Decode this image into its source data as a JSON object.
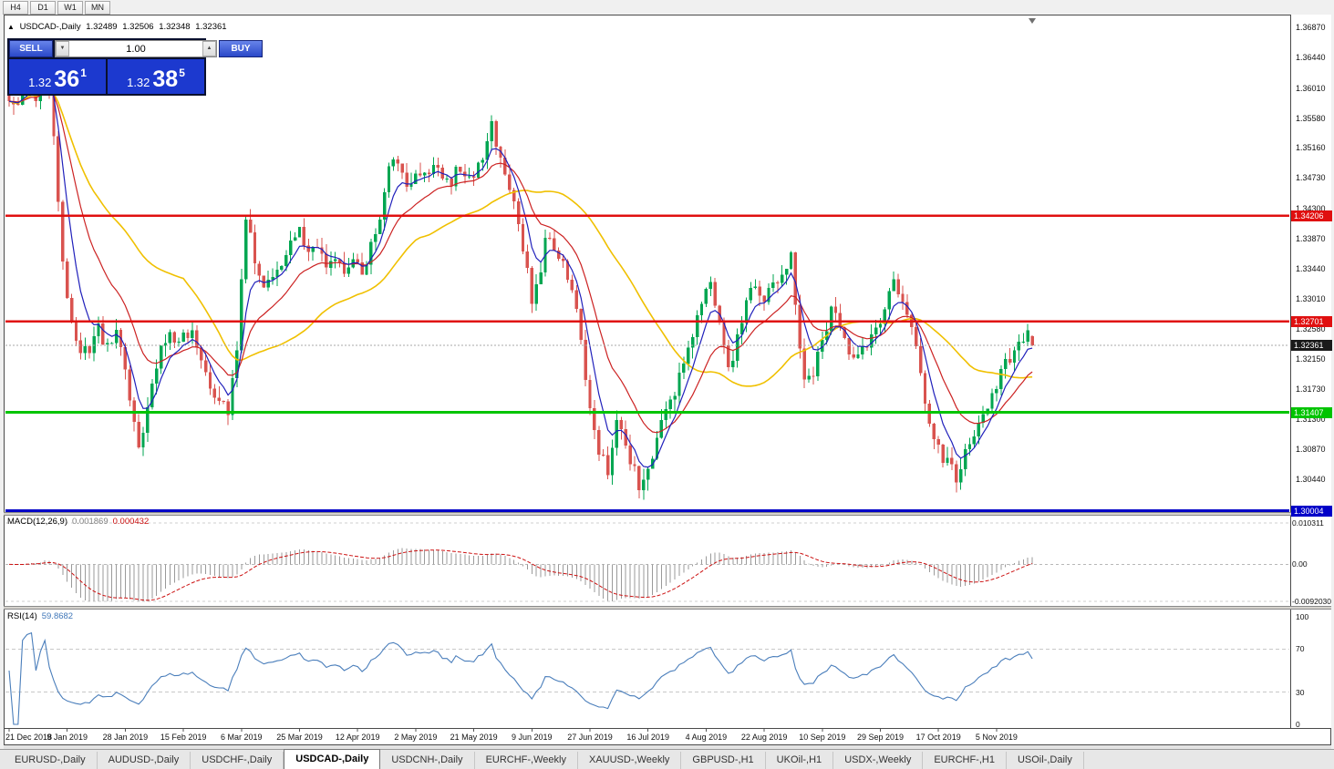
{
  "colors": {
    "candle_up": "#00a651",
    "candle_down": "#d9534f",
    "ma_fast": "#2020bb",
    "ma_mid": "#cc2222",
    "ma_slow": "#f0c000",
    "macd_hist": "#9a9a9a",
    "macd_signal": "#cc1111",
    "rsi_line": "#4a7ebb",
    "current_price_tag": "#1a1a1a"
  },
  "timeframe_bar": {
    "buttons": [
      "H4",
      "D1",
      "W1",
      "MN"
    ]
  },
  "symbol_info": {
    "symbol": "USDCAD-,Daily",
    "open": "1.32489",
    "high": "1.32506",
    "low": "1.32348",
    "close": "1.32361"
  },
  "trade_panel": {
    "sell_label": "SELL",
    "buy_label": "BUY",
    "volume": "1.00",
    "sell_price_main": "1.32",
    "sell_price_pips": "36",
    "sell_price_sup": "1",
    "buy_price_main": "1.32",
    "buy_price_pips": "38",
    "buy_price_sup": "5"
  },
  "chart": {
    "price_axis": [
      "1.36870",
      "1.36440",
      "1.36010",
      "1.35580",
      "1.35160",
      "1.34730",
      "1.34300",
      "1.33870",
      "1.33440",
      "1.33010",
      "1.32580",
      "1.32150",
      "1.31730",
      "1.31300",
      "1.30870",
      "1.30440"
    ],
    "levels": [
      {
        "label": "1.34206",
        "value": 1.34206,
        "color": "#e01010",
        "width": 2.5
      },
      {
        "label": "1.32701",
        "value": 1.32701,
        "color": "#e01010",
        "width": 2.5
      },
      {
        "label": "1.31407",
        "value": 1.31407,
        "color": "#00c400",
        "width": 3
      },
      {
        "label": "1.30004",
        "value": 1.30004,
        "color": "#0000c8",
        "width": 4
      }
    ],
    "current_price": {
      "label": "1.32361",
      "value": 1.32361
    },
    "dates": [
      "21 Dec 2018",
      "9 Jan 2019",
      "28 Jan 2019",
      "15 Feb 2019",
      "6 Mar 2019",
      "25 Mar 2019",
      "12 Apr 2019",
      "2 May 2019",
      "21 May 2019",
      "9 Jun 2019",
      "27 Jun 2019",
      "16 Jul 2019",
      "4 Aug 2019",
      "22 Aug 2019",
      "10 Sep 2019",
      "29 Sep 2019",
      "17 Oct 2019",
      "5 Nov 2019"
    ]
  },
  "macd": {
    "name": "MACD(12,26,9)",
    "main_value": "0.001869",
    "signal_value": "0.000432",
    "axis": [
      "0.010311",
      "0.00",
      "-0.0092030"
    ]
  },
  "rsi": {
    "name": "RSI(14)",
    "value": "59.8682",
    "axis": [
      "100",
      "70",
      "30",
      "0"
    ],
    "levels": [
      70,
      30
    ]
  },
  "tabs": [
    {
      "label": "EURUSD-,Daily",
      "active": false
    },
    {
      "label": "AUDUSD-,Daily",
      "active": false
    },
    {
      "label": "USDCHF-,Daily",
      "active": false
    },
    {
      "label": "USDCAD-,Daily",
      "active": true
    },
    {
      "label": "USDCNH-,Daily",
      "active": false
    },
    {
      "label": "EURCHF-,Weekly",
      "active": false
    },
    {
      "label": "XAUUSD-,Weekly",
      "active": false
    },
    {
      "label": "GBPUSD-,H1",
      "active": false
    },
    {
      "label": "UKOil-,H1",
      "active": false
    },
    {
      "label": "USDX-,Weekly",
      "active": false
    },
    {
      "label": "EURCHF-,H1",
      "active": false
    },
    {
      "label": "USOil-,Daily",
      "active": false
    }
  ],
  "chart_data": {
    "type": "candlestick",
    "title": "USDCAD Daily candlestick chart with 3 moving averages, MACD(12,26,9) and RSI(14)",
    "candle_count": 230,
    "price_range": [
      1.2999,
      1.3699
    ],
    "macd_range": [
      -0.009203,
      0.010311
    ],
    "rsi_range": [
      0,
      100
    ],
    "x_tick_interval": 13,
    "last_candle": {
      "o": 1.32489,
      "h": 1.32506,
      "l": 1.32348,
      "c": 1.32361
    },
    "close_anchors": [
      [
        0,
        1.3592
      ],
      [
        2,
        1.3572
      ],
      [
        4,
        1.3615
      ],
      [
        6,
        1.359
      ],
      [
        8,
        1.3655
      ],
      [
        10,
        1.354
      ],
      [
        12,
        1.335
      ],
      [
        14,
        1.327
      ],
      [
        16,
        1.3215
      ],
      [
        18,
        1.3235
      ],
      [
        20,
        1.3258
      ],
      [
        22,
        1.3235
      ],
      [
        24,
        1.3255
      ],
      [
        26,
        1.3205
      ],
      [
        28,
        1.313
      ],
      [
        29,
        1.3085
      ],
      [
        31,
        1.314
      ],
      [
        33,
        1.3205
      ],
      [
        35,
        1.3248
      ],
      [
        37,
        1.3242
      ],
      [
        39,
        1.326
      ],
      [
        41,
        1.325
      ],
      [
        43,
        1.3215
      ],
      [
        45,
        1.3172
      ],
      [
        47,
        1.316
      ],
      [
        49,
        1.314
      ],
      [
        51,
        1.3238
      ],
      [
        53,
        1.3418
      ],
      [
        55,
        1.3358
      ],
      [
        57,
        1.3312
      ],
      [
        59,
        1.334
      ],
      [
        61,
        1.3358
      ],
      [
        63,
        1.3388
      ],
      [
        65,
        1.3408
      ],
      [
        67,
        1.3362
      ],
      [
        69,
        1.3382
      ],
      [
        71,
        1.3342
      ],
      [
        73,
        1.3362
      ],
      [
        75,
        1.3342
      ],
      [
        77,
        1.3362
      ],
      [
        79,
        1.3332
      ],
      [
        81,
        1.3378
      ],
      [
        83,
        1.3422
      ],
      [
        85,
        1.3488
      ],
      [
        87,
        1.3498
      ],
      [
        89,
        1.347
      ],
      [
        91,
        1.3482
      ],
      [
        93,
        1.3472
      ],
      [
        95,
        1.3498
      ],
      [
        97,
        1.3478
      ],
      [
        99,
        1.3472
      ],
      [
        101,
        1.349
      ],
      [
        103,
        1.3474
      ],
      [
        105,
        1.3495
      ],
      [
        107,
        1.3525
      ],
      [
        108,
        1.3548
      ],
      [
        110,
        1.3505
      ],
      [
        112,
        1.3462
      ],
      [
        114,
        1.3415
      ],
      [
        116,
        1.3345
      ],
      [
        117,
        1.3302
      ],
      [
        119,
        1.3342
      ],
      [
        120,
        1.3398
      ],
      [
        122,
        1.3378
      ],
      [
        124,
        1.3352
      ],
      [
        126,
        1.3308
      ],
      [
        128,
        1.3252
      ],
      [
        130,
        1.3142
      ],
      [
        132,
        1.3082
      ],
      [
        134,
        1.3058
      ],
      [
        136,
        1.3128
      ],
      [
        138,
        1.3088
      ],
      [
        140,
        1.3058
      ],
      [
        141,
        1.3032
      ],
      [
        143,
        1.3062
      ],
      [
        145,
        1.3108
      ],
      [
        147,
        1.3138
      ],
      [
        149,
        1.3168
      ],
      [
        151,
        1.3218
      ],
      [
        153,
        1.3258
      ],
      [
        155,
        1.3298
      ],
      [
        157,
        1.3328
      ],
      [
        159,
        1.3278
      ],
      [
        161,
        1.3198
      ],
      [
        163,
        1.3248
      ],
      [
        165,
        1.3298
      ],
      [
        167,
        1.3318
      ],
      [
        169,
        1.3298
      ],
      [
        171,
        1.3318
      ],
      [
        173,
        1.3328
      ],
      [
        175,
        1.3358
      ],
      [
        176,
        1.3288
      ],
      [
        178,
        1.3178
      ],
      [
        180,
        1.3198
      ],
      [
        182,
        1.3238
      ],
      [
        184,
        1.3288
      ],
      [
        186,
        1.3268
      ],
      [
        188,
        1.3228
      ],
      [
        190,
        1.3218
      ],
      [
        192,
        1.3238
      ],
      [
        194,
        1.3258
      ],
      [
        196,
        1.3288
      ],
      [
        198,
        1.3328
      ],
      [
        200,
        1.3298
      ],
      [
        202,
        1.3268
      ],
      [
        204,
        1.3198
      ],
      [
        206,
        1.3128
      ],
      [
        208,
        1.3088
      ],
      [
        210,
        1.3068
      ],
      [
        212,
        1.3048
      ],
      [
        214,
        1.3088
      ],
      [
        216,
        1.3108
      ],
      [
        218,
        1.3138
      ],
      [
        220,
        1.3168
      ],
      [
        222,
        1.3198
      ],
      [
        224,
        1.3218
      ],
      [
        226,
        1.3238
      ],
      [
        228,
        1.325
      ],
      [
        229,
        1.32361
      ]
    ],
    "moving_averages": [
      {
        "type": "ema",
        "period": 6,
        "color_key": "ma_fast"
      },
      {
        "type": "ema",
        "period": 16,
        "color_key": "ma_mid"
      },
      {
        "type": "sma",
        "period": 40,
        "color_key": "ma_slow"
      }
    ],
    "macd_params": [
      12,
      26,
      9
    ],
    "rsi_period": 14
  }
}
